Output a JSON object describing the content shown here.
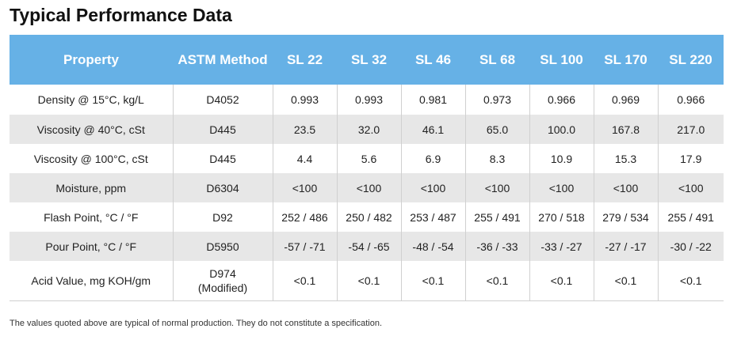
{
  "title": "Typical Performance Data",
  "table": {
    "headers": [
      "Property",
      "ASTM Method",
      "SL 22",
      "SL 32",
      "SL 46",
      "SL 68",
      "SL 100",
      "SL 170",
      "SL 220"
    ],
    "rows": [
      {
        "property": "Density @ 15°C, kg/L",
        "method": "D4052",
        "method_sub": "",
        "values": [
          "0.993",
          "0.993",
          "0.981",
          "0.973",
          "0.966",
          "0.969",
          "0.966"
        ]
      },
      {
        "property": "Viscosity @ 40°C, cSt",
        "method": "D445",
        "method_sub": "",
        "values": [
          "23.5",
          "32.0",
          "46.1",
          "65.0",
          "100.0",
          "167.8",
          "217.0"
        ]
      },
      {
        "property": "Viscosity @ 100°C, cSt",
        "method": "D445",
        "method_sub": "",
        "values": [
          "4.4",
          "5.6",
          "6.9",
          "8.3",
          "10.9",
          "15.3",
          "17.9"
        ]
      },
      {
        "property": "Moisture, ppm",
        "method": "D6304",
        "method_sub": "",
        "values": [
          "<100",
          "<100",
          "<100",
          "<100",
          "<100",
          "<100",
          "<100"
        ]
      },
      {
        "property": "Flash Point, °C / °F",
        "method": "D92",
        "method_sub": "",
        "values": [
          "252 / 486",
          "250 / 482",
          "253 / 487",
          "255 / 491",
          "270 / 518",
          "279 / 534",
          "255 / 491"
        ]
      },
      {
        "property": "Pour Point, °C / °F",
        "method": "D5950",
        "method_sub": "",
        "values": [
          "-57 / -71",
          "-54 / -65",
          "-48 / -54",
          "-36 / -33",
          "-33 / -27",
          "-27 / -17",
          "-30 / -22"
        ]
      },
      {
        "property": "Acid Value, mg KOH/gm",
        "method": "D974",
        "method_sub": "(Modified)",
        "values": [
          "<0.1",
          "<0.1",
          "<0.1",
          "<0.1",
          "<0.1",
          "<0.1",
          "<0.1"
        ]
      }
    ]
  },
  "footnote": "The values quoted above are typical of normal production. They do not constitute a specification."
}
